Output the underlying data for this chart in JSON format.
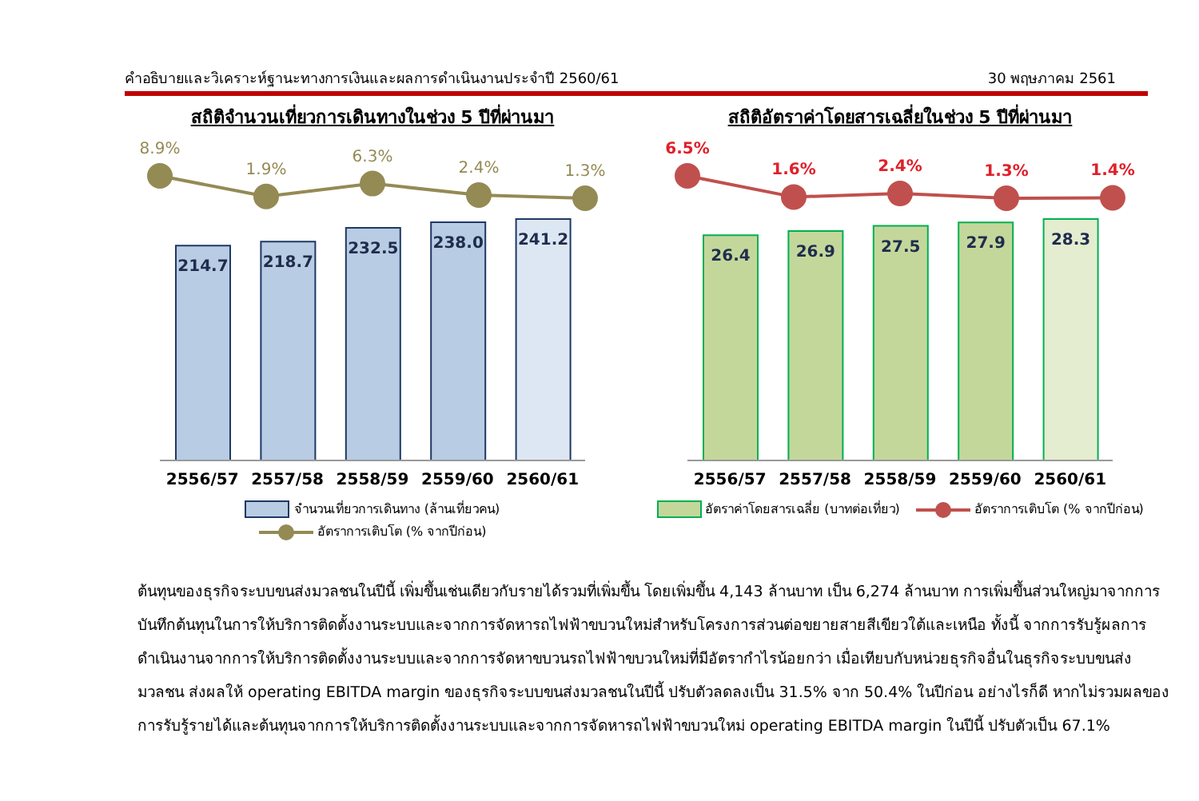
{
  "chart_data": [
    {
      "type": "line",
      "title": "สถิติจำนวนเที่ยวการเดินทางในช่วง 5 ปีที่ผ่านมา",
      "categories": [
        null,
        null,
        null,
        null,
        null
      ],
      "data_labels": true,
      "series": [
        {
          "name": "อัตราการเติบโต (% จากปีก่อน)",
          "color": "#948a54",
          "values": [
            8.9,
            1.9,
            6.3,
            2.4,
            1.3
          ],
          "value_labels": [
            "8.9%",
            "1.9%",
            "6.3%",
            "2.4%",
            "1.3%"
          ]
        }
      ],
      "marker": "circle",
      "legend": "bottom",
      "annotations": [
        "คำอธิบายและวิเคราะห์ฐานะทางการเงินและผลการดำเนินงานประจำปี 2560/61",
        "30 พฤษภาคม 2561"
      ]
    },
    {
      "type": "bar",
      "categories": [
        "2556/57",
        "2557/58",
        "2558/59",
        "2559/60",
        "2560/61"
      ],
      "data_labels": true,
      "series": [
        {
          "name": "จำนวนเที่ยวการเดินทาง (ล้านเที่ยวคน)",
          "color": "#b8cce4",
          "colors": [
            "#b8cce4",
            "#b8cce4",
            "#b8cce4",
            "#b8cce4",
            "#dde7f3"
          ],
          "values": [
            214.7,
            218.7,
            232.5,
            238.0,
            241.2
          ],
          "value_labels": [
            "214.7",
            "218.7",
            "232.5",
            "238.0",
            "241.2"
          ]
        }
      ],
      "legend": "bottom"
    },
    {
      "type": "line",
      "title": "สถิติอัตราค่าโดยสารเฉลี่ยในช่วง 5 ปีที่ผ่านมา",
      "categories": [
        null,
        null,
        null,
        null,
        null
      ],
      "data_labels": true,
      "series": [
        {
          "name": "อัตราการเติบโต (% จากปีก่อน)",
          "color": "#c0504d",
          "values": [
            6.5,
            1.6,
            2.4,
            1.3,
            1.4
          ],
          "value_labels": [
            "6.5%",
            "1.6%",
            "2.4%",
            "1.3%",
            "1.4%"
          ]
        }
      ],
      "marker": "circle",
      "legend": "bottom"
    },
    {
      "type": "bar",
      "categories": [
        "2556/57",
        "2557/58",
        "2558/59",
        "2559/60",
        "2560/61"
      ],
      "data_labels": true,
      "series": [
        {
          "name": "อัตราค่าโดยสารเฉลี่ย (บาทต่อเที่ยว)",
          "color": "#c4d79b",
          "colors": [
            "#c4d79b",
            "#c4d79b",
            "#c4d79b",
            "#c4d79b",
            "#e4edd0"
          ],
          "values": [
            26.4,
            26.9,
            27.5,
            27.9,
            28.3
          ],
          "value_labels": [
            "26.4",
            "26.9",
            "27.5",
            "27.9",
            "28.3"
          ]
        }
      ],
      "legend": "bottom",
      "annotations": [
        "ต้นทุนของธุรกิจระบบขนส่งมวลชนในปีนี้ เพิ่มขึ้นเช่นเดียวกับรายได้รวมที่เพิ่มขึ้น โดยเพิ่มขึ้น 4,143 ล้านบาท เป็น 6,274 ล้านบาท การเพิ่มขึ้นส่วนใหญ่มาจากการบันทึกต้นทุนในการให้บริการติดตั้งงานระบบและจากการจัดหารถไฟฟ้าขบวนใหม่สำหรับโครงการส่วนต่อขยายสายสีเขียวใต้และเหนือ ทั้งนี้ จากการรับรู้ผลการดำเนินงานจากการให้บริการติดตั้งงานระบบและจากการจัดหาขบวนรถไฟฟ้าขบวนใหม่ที่มีอัตรากำไรน้อยกว่า เมื่อเทียบกับหน่วยธุรกิจอื่นในธุรกิจระบบขนส่งมวลชน ส่งผลให้ operating EBITDA margin ของธุรกิจระบบขนส่งมวลชนในปีนี้ ปรับตัวลดลงเป็น 31.5% จาก 50.4% ในปีก่อน อย่างไรก็ดี หากไม่รวมผลของการรับรู้รายได้และต้นทุนจากการให้บริการติดตั้งงานระบบและจากการจัดหารถไฟฟ้าขบวนใหม่ operating EBITDA margin ในปีนี้ ปรับตัวเป็น 67.1%"
      ]
    }
  ]
}
